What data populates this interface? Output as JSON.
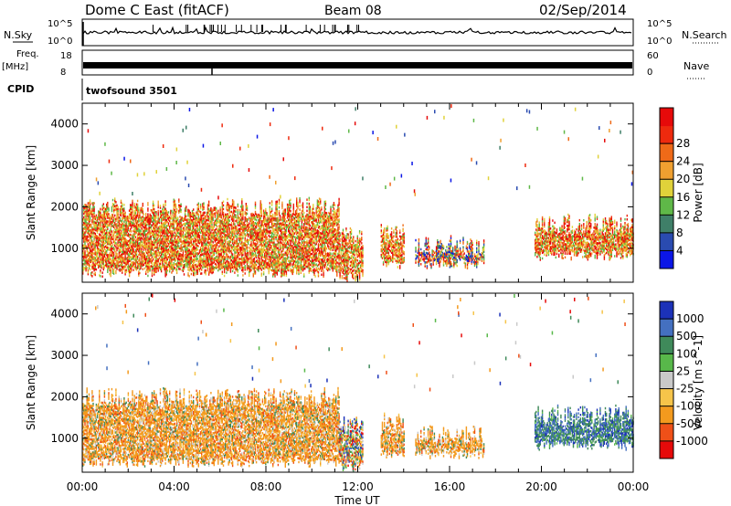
{
  "header": {
    "station": "Dome C East (fitACF)",
    "beam": "Beam 08",
    "date": "02/Sep/2014"
  },
  "meta_panels": {
    "nsky_label": "N.Sky",
    "nsky_ticks": [
      "10^5",
      "10^0"
    ],
    "nsearch_label": "N.Search",
    "nsearch_ticks": [
      "10^5",
      "10^0"
    ],
    "freq_label": "Freq.",
    "freq_unit": "[MHz]",
    "freq_ticks": [
      "18",
      "8"
    ],
    "nave_label": "Nave",
    "nave_ticks": [
      "60",
      "0"
    ],
    "cpid_label": "CPID",
    "cpid_value": "twofsound 3501"
  },
  "colors": {
    "power": [
      "#0b16e6",
      "#2a4bb0",
      "#3f7f68",
      "#5fb848",
      "#e0d23a",
      "#f0a030",
      "#ef6a18",
      "#ee2a0e",
      "#e60a0a"
    ],
    "velocity": [
      "#e60a0a",
      "#ef5018",
      "#f39a1e",
      "#f6c44a",
      "#c9c9c9",
      "#58b84a",
      "#3f8a5a",
      "#4470c0",
      "#1c32b8"
    ]
  },
  "chart_data": [
    {
      "type": "heatmap",
      "panel": "power",
      "ylabel": "Slant Range [km]",
      "xlabel": "",
      "x_ticks": [
        "00:00",
        "04:00",
        "08:00",
        "12:00",
        "16:00",
        "20:00",
        "00:00"
      ],
      "x_range_hours": [
        0,
        24
      ],
      "y_ticks": [
        1000,
        2000,
        3000,
        4000
      ],
      "ylim": [
        180,
        4500
      ],
      "colorbar": {
        "label": "Power [dB]",
        "ticks": [
          4,
          8,
          12,
          16,
          20,
          24,
          28
        ],
        "range": [
          0,
          36
        ]
      },
      "scatter_blocks": [
        {
          "start_hour": 0.0,
          "end_hour": 11.2,
          "ymin": 300,
          "ymax": 2200,
          "level": "high"
        },
        {
          "start_hour": 11.2,
          "end_hour": 12.2,
          "ymin": 200,
          "ymax": 1500,
          "level": "high"
        },
        {
          "start_hour": 13.0,
          "end_hour": 14.0,
          "ymin": 500,
          "ymax": 1600,
          "level": "high"
        },
        {
          "start_hour": 14.5,
          "end_hour": 17.5,
          "ymin": 500,
          "ymax": 1300,
          "level": "mixed"
        },
        {
          "start_hour": 19.7,
          "end_hour": 24.0,
          "ymin": 700,
          "ymax": 1800,
          "level": "high"
        }
      ]
    },
    {
      "type": "heatmap",
      "panel": "velocity",
      "ylabel": "Slant Range [km]",
      "xlabel": "Time UT",
      "x_ticks": [
        "00:00",
        "04:00",
        "08:00",
        "12:00",
        "16:00",
        "20:00",
        "00:00"
      ],
      "x_range_hours": [
        0,
        24
      ],
      "y_ticks": [
        1000,
        2000,
        3000,
        4000
      ],
      "ylim": [
        180,
        4500
      ],
      "colorbar": {
        "label": "Velocity [m s^-1]",
        "ticks": [
          "1000",
          "500",
          "100",
          "25",
          "-25",
          "-100",
          "-500",
          "-1000"
        ]
      },
      "scatter_blocks": [
        {
          "start_hour": 0.0,
          "end_hour": 11.2,
          "ymin": 300,
          "ymax": 2200,
          "level": "negative"
        },
        {
          "start_hour": 11.2,
          "end_hour": 12.2,
          "ymin": 200,
          "ymax": 1500,
          "level": "mixed"
        },
        {
          "start_hour": 13.0,
          "end_hour": 14.0,
          "ymin": 500,
          "ymax": 1600,
          "level": "negative"
        },
        {
          "start_hour": 14.5,
          "end_hour": 17.5,
          "ymin": 500,
          "ymax": 1300,
          "level": "negative"
        },
        {
          "start_hour": 19.7,
          "end_hour": 24.0,
          "ymin": 700,
          "ymax": 1800,
          "level": "positive"
        }
      ]
    }
  ]
}
